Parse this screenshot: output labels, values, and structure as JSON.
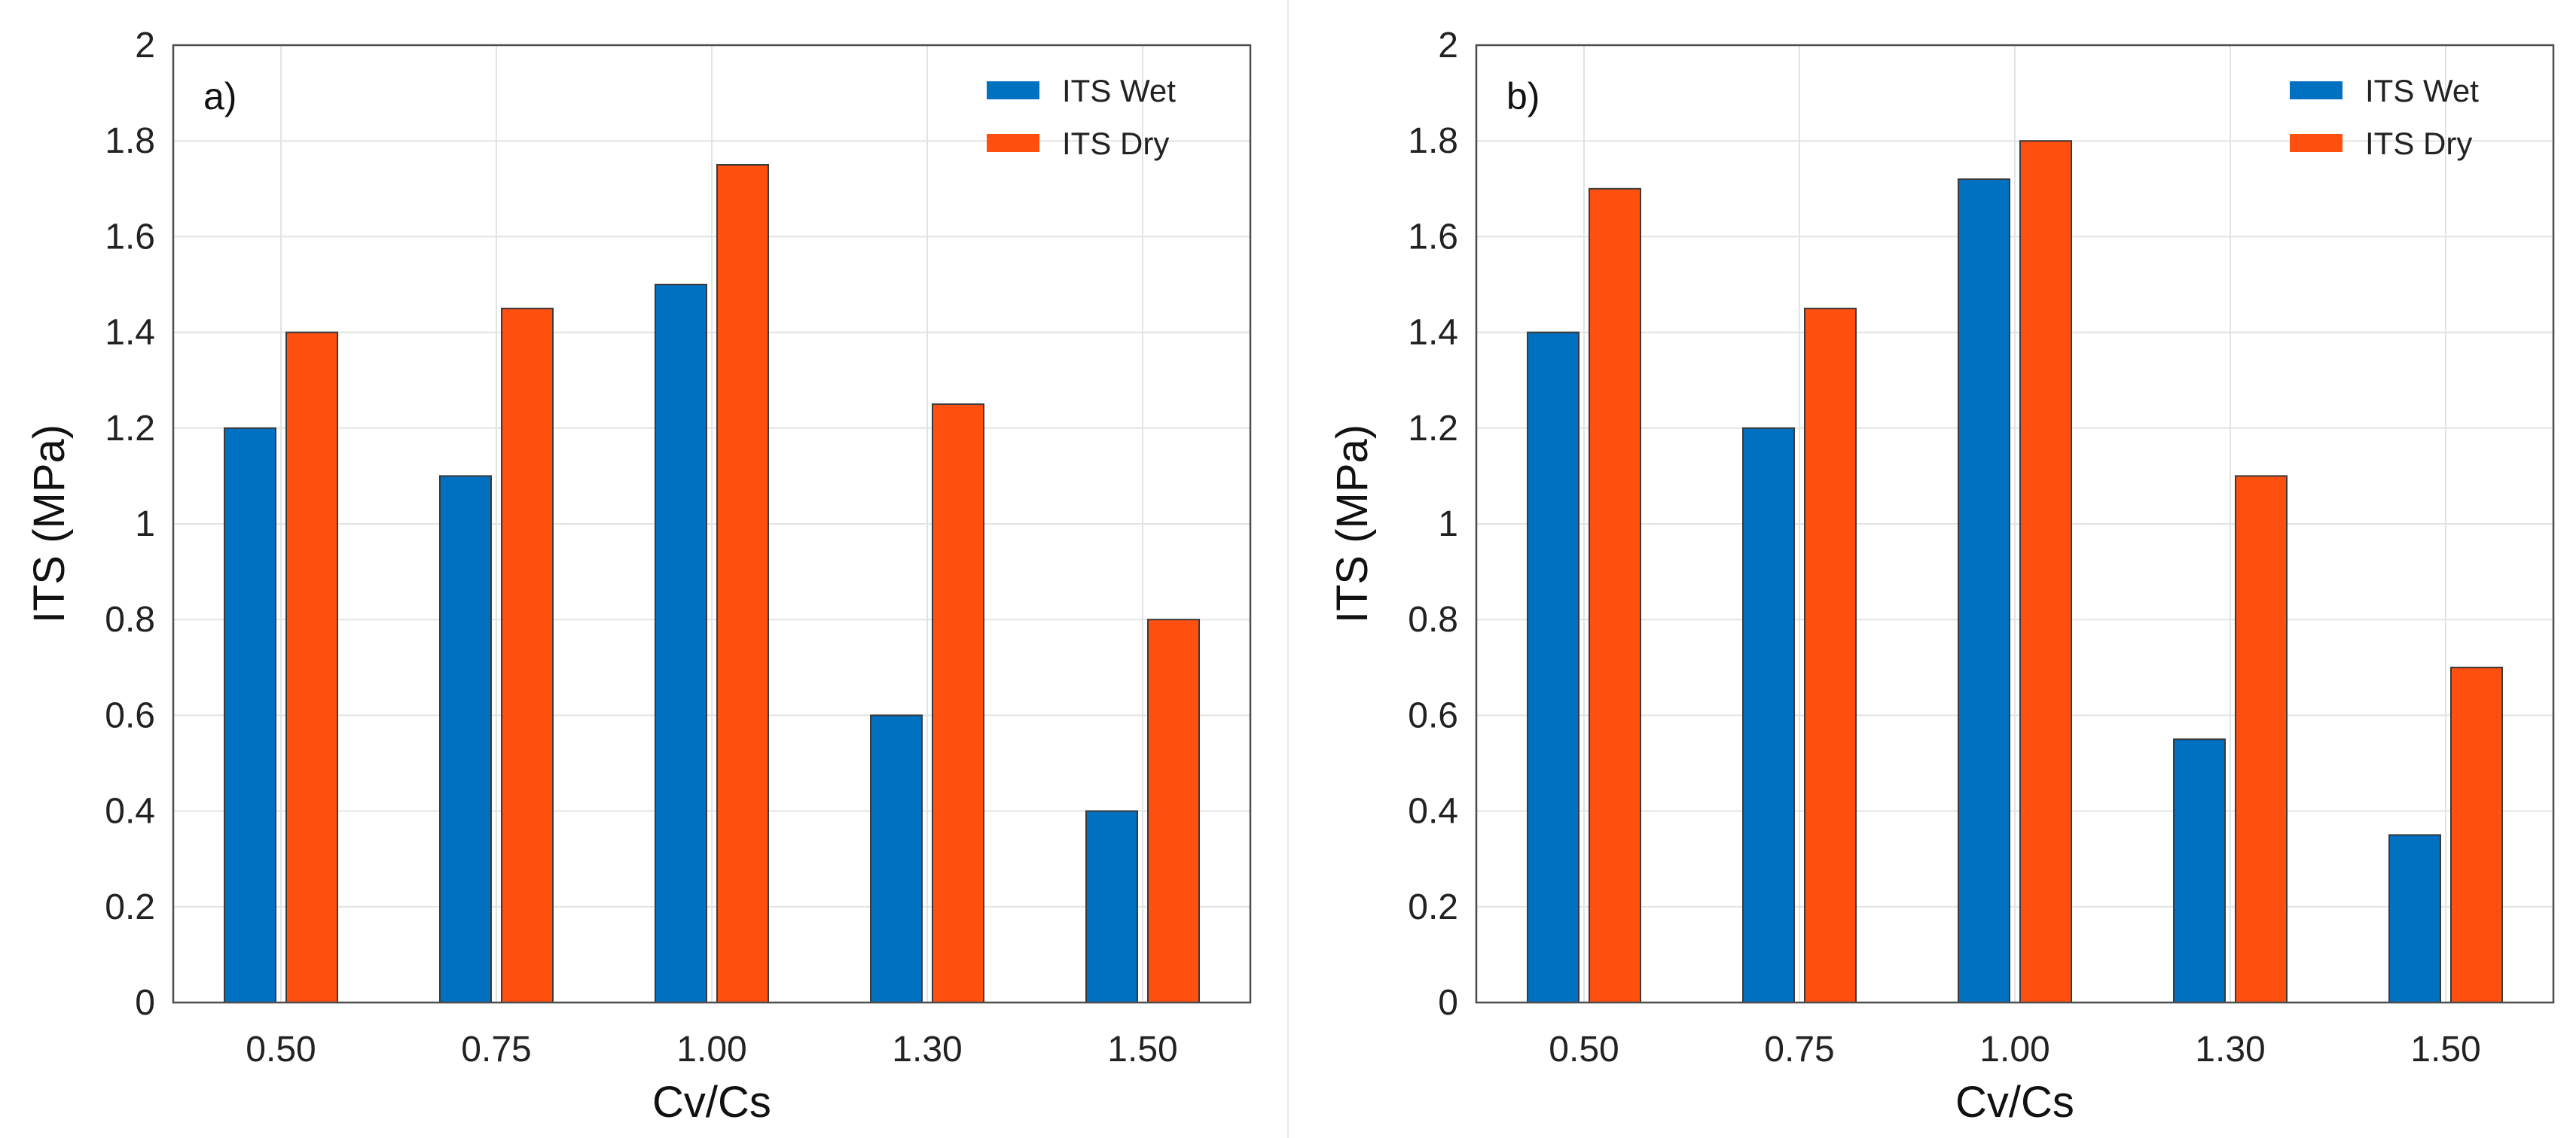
{
  "chart_data": [
    {
      "type": "bar",
      "panel_label": "a)",
      "categories": [
        "0.50",
        "0.75",
        "1.00",
        "1.30",
        "1.50"
      ],
      "series": [
        {
          "name": "ITS Wet",
          "color": "#0070C0",
          "values": [
            1.2,
            1.1,
            1.5,
            0.6,
            0.4
          ]
        },
        {
          "name": "ITS Dry",
          "color": "#FF5010",
          "values": [
            1.4,
            1.45,
            1.75,
            1.25,
            0.8
          ]
        }
      ],
      "xlabel": "Cv/Cs",
      "ylabel": "ITS (MPa)",
      "ylim": [
        0,
        2
      ],
      "yticks": [
        0,
        0.2,
        0.4,
        0.6,
        0.8,
        1,
        1.2,
        1.4,
        1.6,
        1.8,
        2
      ],
      "ytick_labels": [
        "0",
        "0.2",
        "0.4",
        "0.6",
        "0.8",
        "1",
        "1.2",
        "1.4",
        "1.6",
        "1.8",
        "2"
      ],
      "grid": true,
      "legend_position": "top-right"
    },
    {
      "type": "bar",
      "panel_label": "b)",
      "categories": [
        "0.50",
        "0.75",
        "1.00",
        "1.30",
        "1.50"
      ],
      "series": [
        {
          "name": "ITS Wet",
          "color": "#0070C0",
          "values": [
            1.4,
            1.2,
            1.72,
            0.55,
            0.35
          ]
        },
        {
          "name": "ITS Dry",
          "color": "#FF5010",
          "values": [
            1.7,
            1.45,
            1.8,
            1.1,
            0.7
          ]
        }
      ],
      "xlabel": "Cv/Cs",
      "ylabel": "ITS (MPa)",
      "ylim": [
        0,
        2
      ],
      "yticks": [
        0,
        0.2,
        0.4,
        0.6,
        0.8,
        1,
        1.2,
        1.4,
        1.6,
        1.8,
        2
      ],
      "ytick_labels": [
        "0",
        "0.2",
        "0.4",
        "0.6",
        "0.8",
        "1",
        "1.2",
        "1.4",
        "1.6",
        "1.8",
        "2"
      ],
      "grid": true,
      "legend_position": "top-right"
    }
  ]
}
